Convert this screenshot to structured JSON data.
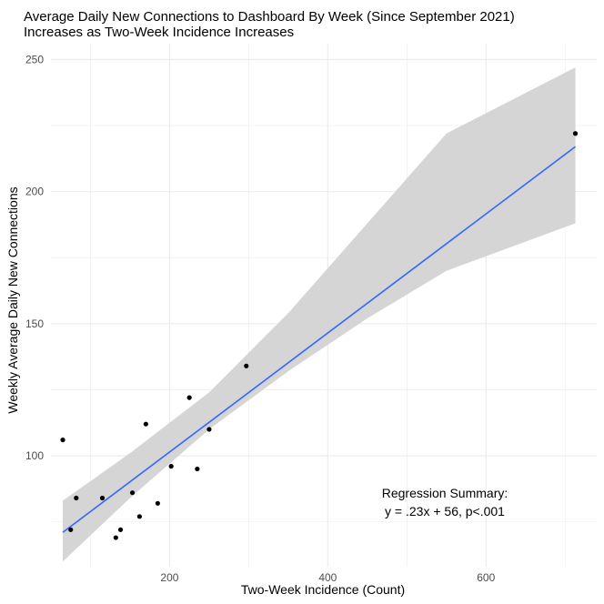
{
  "chart_data": {
    "type": "scatter",
    "title": "Average Daily New Connections to Dashboard By Week (Since September 2021)",
    "subtitle": "Increases as Two-Week Incidence Increases",
    "xlabel": "Two-Week Incidence (Count)",
    "ylabel": "Weekly Average Daily New Connections",
    "xlim": [
      50,
      740
    ],
    "ylim": [
      58,
      256
    ],
    "x_ticks": [
      200,
      400,
      600
    ],
    "y_ticks": [
      100,
      150,
      200,
      250
    ],
    "x_tick_labels": [
      "200",
      "400",
      "600"
    ],
    "y_tick_labels": [
      "100",
      "150",
      "200",
      "250"
    ],
    "grid": true,
    "points": [
      {
        "x": 65,
        "y": 106
      },
      {
        "x": 75,
        "y": 72
      },
      {
        "x": 82,
        "y": 84
      },
      {
        "x": 115,
        "y": 84
      },
      {
        "x": 132,
        "y": 69
      },
      {
        "x": 138,
        "y": 72
      },
      {
        "x": 153,
        "y": 86
      },
      {
        "x": 162,
        "y": 77
      },
      {
        "x": 170,
        "y": 112
      },
      {
        "x": 185,
        "y": 82
      },
      {
        "x": 202,
        "y": 96
      },
      {
        "x": 225,
        "y": 122
      },
      {
        "x": 235,
        "y": 95
      },
      {
        "x": 250,
        "y": 110
      },
      {
        "x": 297,
        "y": 134
      },
      {
        "x": 713,
        "y": 222
      }
    ],
    "fit_line": {
      "x": [
        65,
        713
      ],
      "y": [
        71,
        217
      ]
    },
    "confidence_band": {
      "x": [
        65,
        150,
        250,
        350,
        450,
        550,
        713
      ],
      "lower": [
        60,
        84,
        110,
        132,
        152,
        170,
        188
      ],
      "upper": [
        83,
        101,
        124,
        154,
        188,
        222,
        247
      ]
    },
    "annotation": {
      "line1": "Regression Summary:",
      "line2": "y = .23x + 56, p<.001"
    },
    "colors": {
      "background": "#ffffff",
      "grid": "#ebebeb",
      "points": "#000000",
      "fit_line": "#3366ff",
      "confidence_band": "#d3d3d3",
      "text": "#000000",
      "tick_text": "#4d4d4d"
    }
  }
}
